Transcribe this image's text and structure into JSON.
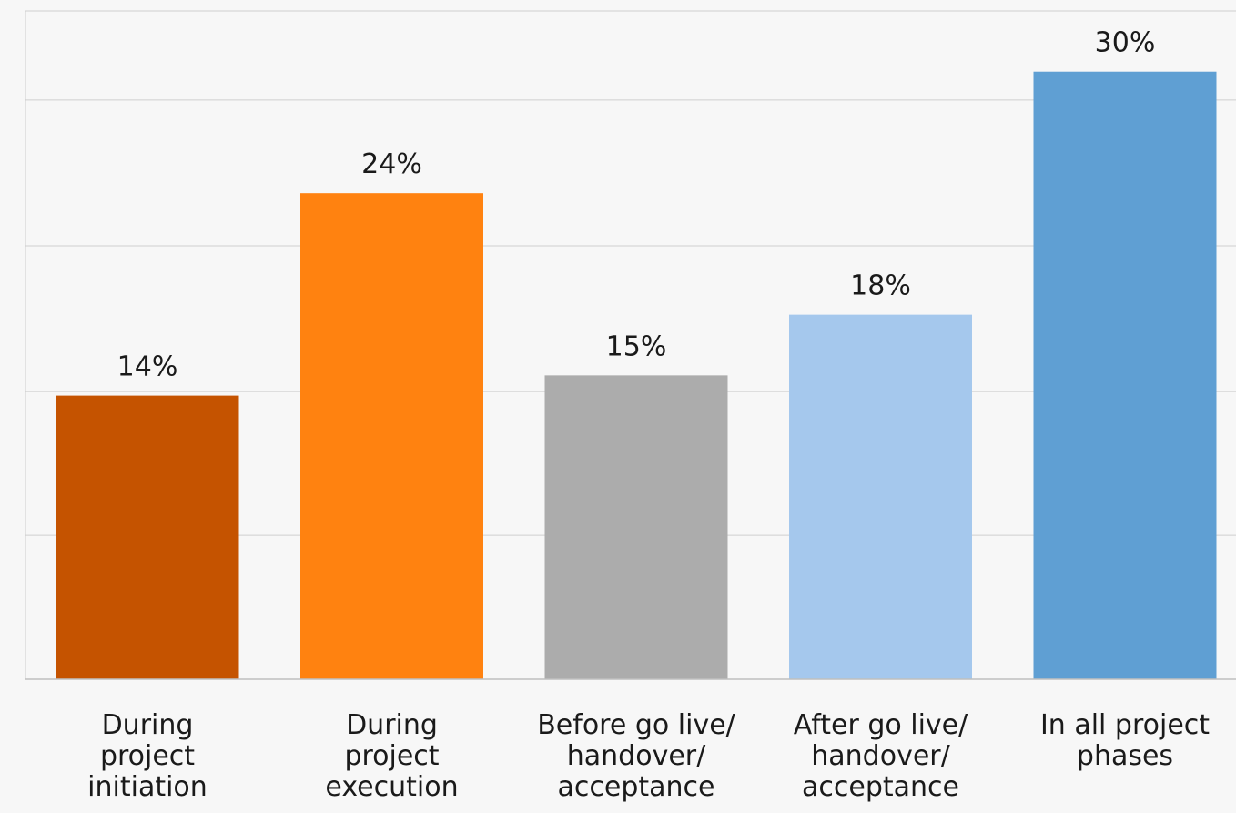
{
  "chart_data": {
    "type": "bar",
    "categories": [
      [
        "During",
        "project",
        "initiation"
      ],
      [
        "During",
        "project",
        "execution"
      ],
      [
        "Before go live/",
        "handover/",
        "acceptance"
      ],
      [
        "After go live/",
        "handover/",
        "acceptance"
      ],
      [
        "In all project",
        "phases"
      ]
    ],
    "values": [
      14,
      24,
      15,
      18,
      30
    ],
    "value_labels": [
      "14%",
      "24%",
      "15%",
      "18%",
      "30%"
    ],
    "colors": [
      "#c55300",
      "#ff8210",
      "#acacac",
      "#a5c8ed",
      "#5f9fd3"
    ],
    "ylim": [
      0,
      33
    ],
    "grid": true,
    "gridline_values": [
      0,
      7.1,
      14.2,
      21.4,
      28.6,
      33
    ],
    "title": "",
    "xlabel": "",
    "ylabel": ""
  }
}
